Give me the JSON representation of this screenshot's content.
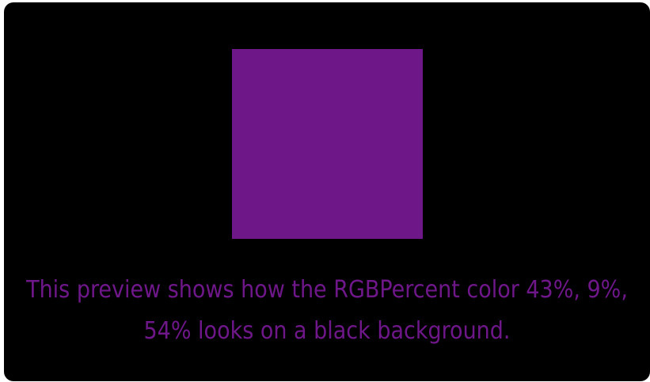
{
  "preview": {
    "color_hex": "#6e1789",
    "background_hex": "#000000",
    "caption": "This preview shows how the RGBPercent color 43%, 9%, 54% looks on a black background."
  }
}
